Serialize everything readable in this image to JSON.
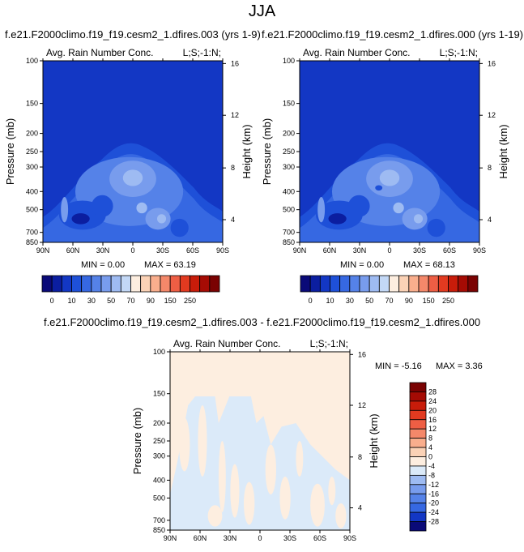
{
  "page_title": "JJA",
  "colors": {
    "abs_palette": [
      "#0a0a78",
      "#0b1ea0",
      "#1337c4",
      "#1e50d8",
      "#3668e2",
      "#5582e8",
      "#789ced",
      "#9ebbf2",
      "#c3d8f6",
      "#fdeee0",
      "#fbd2b6",
      "#f9ae8d",
      "#f4886a",
      "#ee5e44",
      "#e23a20",
      "#c81c0a",
      "#a50b04",
      "#7a0202"
    ],
    "diff_palette": [
      "#0a0a78",
      "#0b1ea0",
      "#1337c4",
      "#1e50d8",
      "#3668e2",
      "#5582e8",
      "#789ced",
      "#9ebbf2",
      "#dbeaf9",
      "#fdeee0",
      "#fbd2b6",
      "#f9ae8d",
      "#f4886a",
      "#ee5e44",
      "#e23a20",
      "#c81c0a",
      "#a50b04",
      "#7a0202"
    ]
  },
  "chart_data": [
    {
      "type": "heatmap",
      "title": "f.e21.F2000climo.f19_f19.cesm2_1.dfires.003 (yrs 1-9)",
      "left_label": "Avg. Rain Number Conc.",
      "right_label": "L;S;-1:N;",
      "xlabel": "",
      "ylabel": "Pressure (mb)",
      "ylabel_right": "Height (km)",
      "x_ticks": [
        "90N",
        "60N",
        "30N",
        "0",
        "30S",
        "60S",
        "90S"
      ],
      "y_ticks": [
        "100",
        "150",
        "200",
        "250",
        "300",
        "400",
        "500",
        "700",
        "850"
      ],
      "y_ticks_right": [
        "16",
        "12",
        "8",
        "4"
      ],
      "min_label": "MIN =  0.00",
      "max_label": "MAX =  63.19",
      "colorbar_labels": [
        "0",
        "10",
        "30",
        "50",
        "70",
        "90",
        "150",
        "250"
      ]
    },
    {
      "type": "heatmap",
      "title": "f.e21.F2000climo.f19_f19.cesm2_1.dfires.000 (yrs 1-19)",
      "left_label": "Avg. Rain Number Conc.",
      "right_label": "L;S;-1:N;",
      "xlabel": "",
      "ylabel": "Pressure (mb)",
      "ylabel_right": "Height (km)",
      "x_ticks": [
        "90N",
        "60N",
        "30N",
        "0",
        "30S",
        "60S",
        "90S"
      ],
      "y_ticks": [
        "100",
        "150",
        "200",
        "250",
        "300",
        "400",
        "500",
        "700",
        "850"
      ],
      "y_ticks_right": [
        "16",
        "12",
        "8",
        "4"
      ],
      "min_label": "MIN =  0.00",
      "max_label": "MAX =  68.13",
      "colorbar_labels": [
        "0",
        "10",
        "30",
        "50",
        "70",
        "90",
        "150",
        "250"
      ]
    },
    {
      "type": "heatmap",
      "title": "f.e21.F2000climo.f19_f19.cesm2_1.dfires.003 - f.e21.F2000climo.f19_f19.cesm2_1.dfires.000",
      "left_label": "Avg. Rain Number Conc.",
      "right_label": "L;S;-1:N;",
      "xlabel": "",
      "ylabel": "Pressure (mb)",
      "ylabel_right": "Height (km)",
      "x_ticks": [
        "90N",
        "60N",
        "30N",
        "0",
        "30S",
        "60S",
        "90S"
      ],
      "y_ticks": [
        "100",
        "150",
        "200",
        "250",
        "300",
        "400",
        "500",
        "700",
        "850"
      ],
      "y_ticks_right": [
        "16",
        "12",
        "8",
        "4"
      ],
      "min_label": "MIN = -5.16",
      "max_label": "MAX =  3.36",
      "colorbar_labels": [
        "28",
        "24",
        "20",
        "16",
        "12",
        "8",
        "4",
        "0",
        "-4",
        "-8",
        "-12",
        "-16",
        "-20",
        "-24",
        "-28"
      ]
    }
  ]
}
